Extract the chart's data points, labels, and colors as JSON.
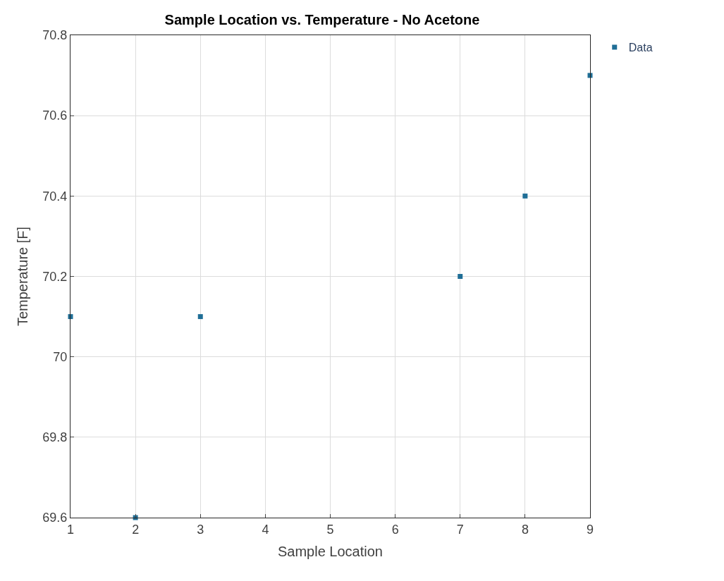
{
  "chart_data": {
    "type": "scatter",
    "title": "Sample Location vs. Temperature - No Acetone",
    "xlabel": "Sample Location",
    "ylabel": "Temperature [F]",
    "x": [
      1,
      2,
      3,
      7,
      8,
      9
    ],
    "series": [
      {
        "name": "Data",
        "color": "#1f6e96",
        "values": [
          70.1,
          69.6,
          70.1,
          70.2,
          70.4,
          70.7
        ]
      }
    ],
    "xlim": [
      1,
      9
    ],
    "xticks": [
      1,
      2,
      3,
      4,
      5,
      6,
      7,
      8,
      9
    ],
    "ylim": [
      69.6,
      70.8
    ],
    "yticks": [
      69.6,
      69.8,
      70,
      70.2,
      70.4,
      70.6,
      70.8
    ],
    "grid": true,
    "legend": "top right",
    "marker": "square"
  }
}
